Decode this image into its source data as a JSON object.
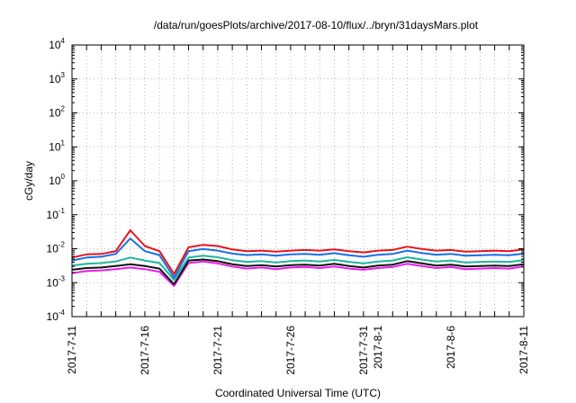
{
  "chart_data": {
    "type": "line",
    "title": "/data/run/goesPlots/archive/2017-08-10/flux/../bryn/31daysMars.plot",
    "xlabel": "Coordinated Universal Time (UTC)",
    "ylabel": "cGy/day",
    "yscale": "log",
    "ylim": [
      0.0001,
      10000
    ],
    "xlim": [
      "2017-07-11",
      "2017-08-11"
    ],
    "grid": true,
    "x_tick_labels": [
      "2017-7-11",
      "2017-7-16",
      "2017-7-21",
      "2017-7-26",
      "2017-7-31",
      "2017-8-1",
      "2017-8-6",
      "2017-8-11"
    ],
    "y_tick_labels": [
      {
        "base": "10",
        "exp": "-4"
      },
      {
        "base": "10",
        "exp": "-3"
      },
      {
        "base": "10",
        "exp": "-2"
      },
      {
        "base": "10",
        "exp": "-1"
      },
      {
        "base": "10",
        "exp": "0"
      },
      {
        "base": "10",
        "exp": "1"
      },
      {
        "base": "10",
        "exp": "2"
      },
      {
        "base": "10",
        "exp": "3"
      },
      {
        "base": "10",
        "exp": "4"
      }
    ],
    "x": [
      "2017-07-11",
      "2017-07-12",
      "2017-07-13",
      "2017-07-14",
      "2017-07-15",
      "2017-07-16",
      "2017-07-17",
      "2017-07-18",
      "2017-07-19",
      "2017-07-20",
      "2017-07-21",
      "2017-07-22",
      "2017-07-23",
      "2017-07-24",
      "2017-07-25",
      "2017-07-26",
      "2017-07-27",
      "2017-07-28",
      "2017-07-29",
      "2017-07-30",
      "2017-07-31",
      "2017-08-01",
      "2017-08-02",
      "2017-08-03",
      "2017-08-04",
      "2017-08-05",
      "2017-08-06",
      "2017-08-07",
      "2017-08-08",
      "2017-08-09",
      "2017-08-10",
      "2017-08-11"
    ],
    "series": [
      {
        "color": "#e8141b",
        "values": [
          0.0055,
          0.0068,
          0.007,
          0.0085,
          0.035,
          0.012,
          0.0085,
          0.0018,
          0.011,
          0.013,
          0.012,
          0.0095,
          0.0085,
          0.0088,
          0.0082,
          0.0088,
          0.0092,
          0.0088,
          0.0095,
          0.0085,
          0.0078,
          0.0088,
          0.0092,
          0.0115,
          0.0098,
          0.0088,
          0.0092,
          0.0082,
          0.0085,
          0.0088,
          0.0085,
          0.0095
        ]
      },
      {
        "color": "#1a6fe8",
        "values": [
          0.0045,
          0.0055,
          0.0058,
          0.007,
          0.02,
          0.0085,
          0.0065,
          0.0014,
          0.0085,
          0.0098,
          0.0088,
          0.0072,
          0.0065,
          0.0068,
          0.0062,
          0.0068,
          0.007,
          0.0066,
          0.0074,
          0.0064,
          0.0058,
          0.0066,
          0.007,
          0.0088,
          0.0075,
          0.0066,
          0.007,
          0.0062,
          0.0064,
          0.0066,
          0.0064,
          0.0072
        ]
      },
      {
        "color": "#1fb59c",
        "values": [
          0.0032,
          0.0036,
          0.0038,
          0.0042,
          0.0055,
          0.0045,
          0.0038,
          0.0012,
          0.0055,
          0.0062,
          0.0056,
          0.0046,
          0.0041,
          0.0043,
          0.0039,
          0.0043,
          0.0045,
          0.0042,
          0.0047,
          0.0041,
          0.0037,
          0.0042,
          0.0045,
          0.0056,
          0.0048,
          0.0042,
          0.0045,
          0.0039,
          0.0041,
          0.0042,
          0.0041,
          0.0046
        ]
      },
      {
        "color": "#111111",
        "values": [
          0.0024,
          0.0027,
          0.0028,
          0.0031,
          0.0035,
          0.0031,
          0.0026,
          0.0009,
          0.0045,
          0.0048,
          0.0043,
          0.0035,
          0.0031,
          0.0033,
          0.003,
          0.0033,
          0.0034,
          0.0032,
          0.0036,
          0.0031,
          0.0028,
          0.0032,
          0.0034,
          0.0043,
          0.0037,
          0.0032,
          0.0034,
          0.003,
          0.0031,
          0.0032,
          0.0031,
          0.0035
        ]
      },
      {
        "color": "#e81ee8",
        "values": [
          0.0019,
          0.0022,
          0.0023,
          0.0025,
          0.0028,
          0.0025,
          0.0021,
          0.0008,
          0.0038,
          0.0042,
          0.0037,
          0.003,
          0.0026,
          0.0028,
          0.0025,
          0.0028,
          0.0029,
          0.0027,
          0.003,
          0.0026,
          0.0024,
          0.0027,
          0.0029,
          0.0036,
          0.0031,
          0.0027,
          0.0029,
          0.0025,
          0.0026,
          0.0027,
          0.0026,
          0.003
        ]
      }
    ]
  }
}
